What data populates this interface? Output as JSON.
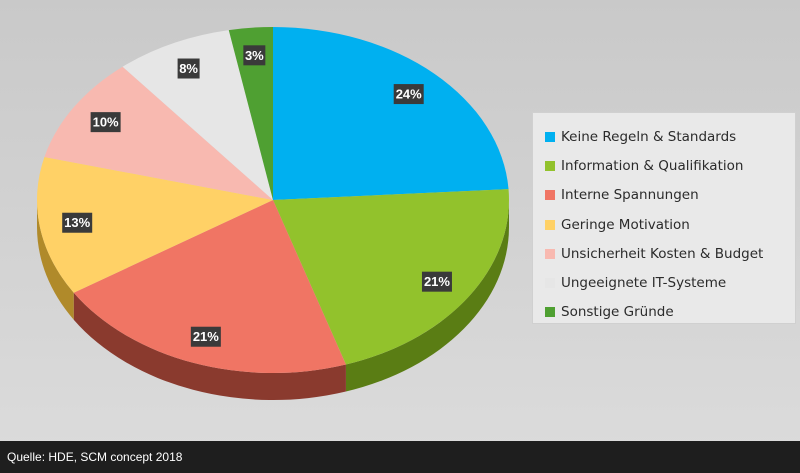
{
  "chart_data": {
    "type": "pie",
    "categories": [
      "Keine Regeln & Standards",
      "Information & Qualifikation",
      "Interne Spannungen",
      "Geringe Motivation",
      "Unsicherheit Kosten & Budget",
      "Ungeeignete IT-Systeme",
      "Sonstige Gründe"
    ],
    "values": [
      24,
      21,
      21,
      13,
      10,
      8,
      3
    ],
    "data_labels": [
      "24%",
      "21%",
      "21%",
      "13%",
      "10%",
      "8%",
      "3%"
    ],
    "colors": [
      "#00b0f0",
      "#92c22c",
      "#f07564",
      "#ffd166",
      "#f8b9b0",
      "#e6e6e6",
      "#4fa032"
    ],
    "side_colors": [
      "#0078a8",
      "#5a7d14",
      "#8a3a2e",
      "#b08a2a",
      "#b07a72",
      "#9a9a9a",
      "#2f6a1c"
    ],
    "legend_position": "right",
    "start_angle_deg": 0,
    "direction": "clockwise",
    "style": "3d"
  },
  "footer": {
    "source": "Quelle: HDE, SCM concept 2018"
  }
}
